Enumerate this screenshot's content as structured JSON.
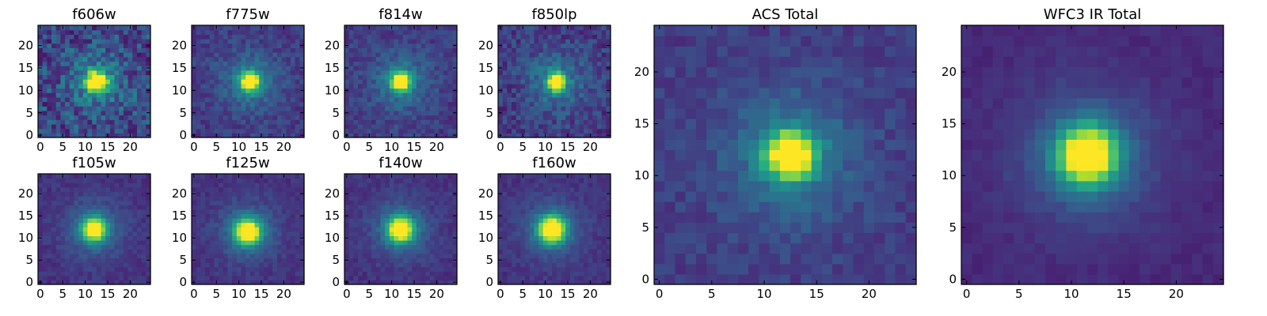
{
  "chart_data": [
    {
      "type": "heatmap",
      "title": "f606w",
      "grid_size": 25,
      "xlim": [
        -0.5,
        24.5
      ],
      "ylim": [
        -0.5,
        24.5
      ],
      "xticks": [
        0,
        5,
        10,
        15,
        20
      ],
      "yticks": [
        0,
        5,
        10,
        15,
        20
      ],
      "xticklabels": [
        "0",
        "5",
        "10",
        "15",
        "20"
      ],
      "yticklabels": [
        "0",
        "5",
        "10",
        "15",
        "20"
      ],
      "colormap": "viridis",
      "peak": {
        "x": 12.5,
        "y": 12
      },
      "core_width": 1.6,
      "halo_width": 4.5,
      "core_amp": 0.95,
      "halo_amp": 0.25,
      "background": 0.22,
      "noise": 0.17,
      "seed": 11
    },
    {
      "type": "heatmap",
      "title": "f775w",
      "grid_size": 25,
      "xlim": [
        -0.5,
        24.5
      ],
      "ylim": [
        -0.5,
        24.5
      ],
      "xticks": [
        0,
        5,
        10,
        15,
        20
      ],
      "yticks": [
        0,
        5,
        10,
        15,
        20
      ],
      "xticklabels": [
        "0",
        "5",
        "10",
        "15",
        "20"
      ],
      "yticklabels": [
        "0",
        "5",
        "10",
        "15",
        "20"
      ],
      "colormap": "viridis",
      "peak": {
        "x": 12.5,
        "y": 12
      },
      "core_width": 1.4,
      "halo_width": 4.5,
      "core_amp": 0.95,
      "halo_amp": 0.25,
      "background": 0.18,
      "noise": 0.08,
      "seed": 23
    },
    {
      "type": "heatmap",
      "title": "f814w",
      "grid_size": 25,
      "xlim": [
        -0.5,
        24.5
      ],
      "ylim": [
        -0.5,
        24.5
      ],
      "xticks": [
        0,
        5,
        10,
        15,
        20
      ],
      "yticks": [
        0,
        5,
        10,
        15,
        20
      ],
      "xticklabels": [
        "0",
        "5",
        "10",
        "15",
        "20"
      ],
      "yticklabels": [
        "0",
        "5",
        "10",
        "15",
        "20"
      ],
      "colormap": "viridis",
      "peak": {
        "x": 12,
        "y": 12
      },
      "core_width": 1.4,
      "halo_width": 4.5,
      "core_amp": 0.95,
      "halo_amp": 0.25,
      "background": 0.18,
      "noise": 0.08,
      "seed": 37
    },
    {
      "type": "heatmap",
      "title": "f850lp",
      "grid_size": 25,
      "xlim": [
        -0.5,
        24.5
      ],
      "ylim": [
        -0.5,
        24.5
      ],
      "xticks": [
        0,
        5,
        10,
        15,
        20
      ],
      "yticks": [
        0,
        5,
        10,
        15,
        20
      ],
      "xticklabels": [
        "0",
        "5",
        "10",
        "15",
        "20"
      ],
      "yticklabels": [
        "0",
        "5",
        "10",
        "15",
        "20"
      ],
      "colormap": "viridis",
      "peak": {
        "x": 12.5,
        "y": 12
      },
      "core_width": 1.3,
      "halo_width": 4.5,
      "core_amp": 0.95,
      "halo_amp": 0.25,
      "background": 0.18,
      "noise": 0.11,
      "seed": 41
    },
    {
      "type": "heatmap",
      "title": "f105w",
      "grid_size": 25,
      "xlim": [
        -0.5,
        24.5
      ],
      "ylim": [
        -0.5,
        24.5
      ],
      "xticks": [
        0,
        5,
        10,
        15,
        20
      ],
      "yticks": [
        0,
        5,
        10,
        15,
        20
      ],
      "xticklabels": [
        "0",
        "5",
        "10",
        "15",
        "20"
      ],
      "yticklabels": [
        "0",
        "5",
        "10",
        "15",
        "20"
      ],
      "colormap": "viridis",
      "peak": {
        "x": 12,
        "y": 12
      },
      "core_width": 1.7,
      "halo_width": 4.5,
      "core_amp": 0.95,
      "halo_amp": 0.25,
      "background": 0.15,
      "noise": 0.05,
      "seed": 53
    },
    {
      "type": "heatmap",
      "title": "f125w",
      "grid_size": 25,
      "xlim": [
        -0.5,
        24.5
      ],
      "ylim": [
        -0.5,
        24.5
      ],
      "xticks": [
        0,
        5,
        10,
        15,
        20
      ],
      "yticks": [
        0,
        5,
        10,
        15,
        20
      ],
      "xticklabels": [
        "0",
        "5",
        "10",
        "15",
        "20"
      ],
      "yticklabels": [
        "0",
        "5",
        "10",
        "15",
        "20"
      ],
      "colormap": "viridis",
      "peak": {
        "x": 12,
        "y": 11.5
      },
      "core_width": 1.9,
      "halo_width": 4.5,
      "core_amp": 0.95,
      "halo_amp": 0.25,
      "background": 0.15,
      "noise": 0.05,
      "seed": 67
    },
    {
      "type": "heatmap",
      "title": "f140w",
      "grid_size": 25,
      "xlim": [
        -0.5,
        24.5
      ],
      "ylim": [
        -0.5,
        24.5
      ],
      "xticks": [
        0,
        5,
        10,
        15,
        20
      ],
      "yticks": [
        0,
        5,
        10,
        15,
        20
      ],
      "xticklabels": [
        "0",
        "5",
        "10",
        "15",
        "20"
      ],
      "yticklabels": [
        "0",
        "5",
        "10",
        "15",
        "20"
      ],
      "colormap": "viridis",
      "peak": {
        "x": 12,
        "y": 12
      },
      "core_width": 1.9,
      "halo_width": 4.5,
      "core_amp": 0.95,
      "halo_amp": 0.25,
      "background": 0.15,
      "noise": 0.05,
      "seed": 79
    },
    {
      "type": "heatmap",
      "title": "f160w",
      "grid_size": 25,
      "xlim": [
        -0.5,
        24.5
      ],
      "ylim": [
        -0.5,
        24.5
      ],
      "xticks": [
        0,
        5,
        10,
        15,
        20
      ],
      "yticks": [
        0,
        5,
        10,
        15,
        20
      ],
      "xticklabels": [
        "0",
        "5",
        "10",
        "15",
        "20"
      ],
      "yticklabels": [
        "0",
        "5",
        "10",
        "15",
        "20"
      ],
      "colormap": "viridis",
      "peak": {
        "x": 11.5,
        "y": 12
      },
      "core_width": 2.0,
      "halo_width": 4.5,
      "core_amp": 0.95,
      "halo_amp": 0.25,
      "background": 0.15,
      "noise": 0.05,
      "seed": 83
    },
    {
      "type": "heatmap",
      "title": "ACS Total",
      "grid_size": 25,
      "xlim": [
        -0.5,
        24.5
      ],
      "ylim": [
        -0.5,
        24.5
      ],
      "xticks": [
        0,
        5,
        10,
        15,
        20
      ],
      "yticks": [
        0,
        5,
        10,
        15,
        20
      ],
      "xticklabels": [
        "0",
        "5",
        "10",
        "15",
        "20"
      ],
      "yticklabels": [
        "0",
        "5",
        "10",
        "15",
        "20"
      ],
      "colormap": "viridis",
      "peak": {
        "x": 12.5,
        "y": 12
      },
      "core_width": 1.5,
      "halo_width": 4.5,
      "core_amp": 0.95,
      "halo_amp": 0.25,
      "background": 0.18,
      "noise": 0.06,
      "seed": 97
    },
    {
      "type": "heatmap",
      "title": "WFC3 IR Total",
      "grid_size": 25,
      "xlim": [
        -0.5,
        24.5
      ],
      "ylim": [
        -0.5,
        24.5
      ],
      "xticks": [
        0,
        5,
        10,
        15,
        20
      ],
      "yticks": [
        0,
        5,
        10,
        15,
        20
      ],
      "xticklabels": [
        "0",
        "5",
        "10",
        "15",
        "20"
      ],
      "yticklabels": [
        "0",
        "5",
        "10",
        "15",
        "20"
      ],
      "colormap": "viridis",
      "peak": {
        "x": 11.5,
        "y": 12
      },
      "core_width": 1.9,
      "halo_width": 4.5,
      "core_amp": 0.95,
      "halo_amp": 0.25,
      "background": 0.12,
      "noise": 0.03,
      "seed": 101
    }
  ]
}
